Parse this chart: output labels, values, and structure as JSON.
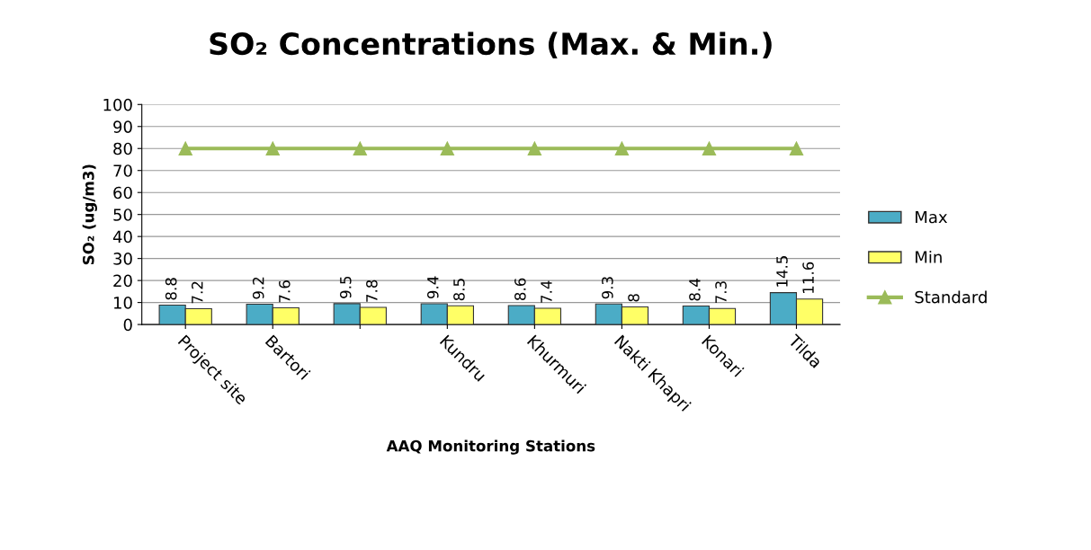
{
  "chart_data": {
    "type": "bar",
    "title": "SO₂ Concentrations (Max. & Min.)",
    "xlabel": "AAQ Monitoring Stations",
    "ylabel": "SO₂ (ug/m3)",
    "categories": [
      "Project site",
      "Bartori",
      null,
      "Kundru",
      "Khurmuri",
      "Nakti Khapri",
      "Konari",
      "Tilda"
    ],
    "series": [
      {
        "name": "Max",
        "color": "#4bacc6",
        "values": [
          8.8,
          9.2,
          9.5,
          9.4,
          8.6,
          9.3,
          8.4,
          14.5
        ],
        "value_labels": [
          "8.8",
          "9.2",
          "9.5",
          "9.4",
          "8.6",
          "9.3",
          "8.4",
          "14.5"
        ]
      },
      {
        "name": "Min",
        "color": "#ffff66",
        "values": [
          7.2,
          7.6,
          7.8,
          8.5,
          7.4,
          8,
          7.3,
          11.6
        ],
        "value_labels": [
          "7.2",
          "7.6",
          "7.8",
          "8.5",
          "7.4",
          "8",
          "7.3",
          "11.6"
        ]
      },
      {
        "name": "Standard",
        "type": "line",
        "color": "#9bbb59",
        "marker": "triangle",
        "values": [
          80,
          80,
          80,
          80,
          80,
          80,
          80,
          80
        ]
      }
    ],
    "ylim": [
      0,
      100
    ],
    "yticks": [
      0,
      10,
      20,
      30,
      40,
      50,
      60,
      70,
      80,
      90,
      100
    ],
    "grid": "y",
    "legend": "right"
  }
}
